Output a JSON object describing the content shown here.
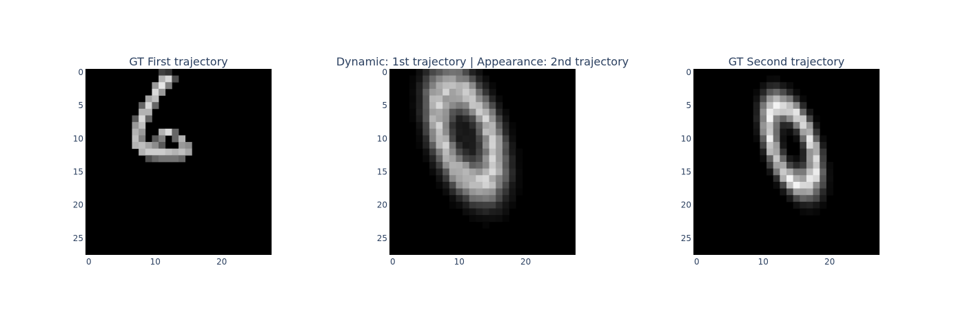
{
  "chart_data": [
    {
      "type": "heatmap",
      "title": "GT First trajectory",
      "colormap": "grayscale",
      "x_range": [
        -0.5,
        27.5
      ],
      "y_range": [
        27.5,
        -0.5
      ],
      "x_ticks": [
        "0",
        "10",
        "20"
      ],
      "y_ticks": [
        "0",
        "5",
        "10",
        "15",
        "20",
        "25"
      ],
      "pixels": [
        {
          "x": 11,
          "y": 0,
          "v": 0.25
        },
        {
          "x": 12,
          "y": 0,
          "v": 0.2
        },
        {
          "x": 11,
          "y": 1,
          "v": 0.7
        },
        {
          "x": 12,
          "y": 1,
          "v": 0.85
        },
        {
          "x": 13,
          "y": 1,
          "v": 0.3
        },
        {
          "x": 10,
          "y": 2,
          "v": 0.6
        },
        {
          "x": 11,
          "y": 2,
          "v": 0.9
        },
        {
          "x": 12,
          "y": 2,
          "v": 0.5
        },
        {
          "x": 10,
          "y": 3,
          "v": 0.85
        },
        {
          "x": 11,
          "y": 3,
          "v": 0.6
        },
        {
          "x": 9,
          "y": 4,
          "v": 0.65
        },
        {
          "x": 10,
          "y": 4,
          "v": 0.75
        },
        {
          "x": 8,
          "y": 5,
          "v": 0.4
        },
        {
          "x": 9,
          "y": 5,
          "v": 0.85
        },
        {
          "x": 10,
          "y": 5,
          "v": 0.4
        },
        {
          "x": 8,
          "y": 6,
          "v": 0.7
        },
        {
          "x": 9,
          "y": 6,
          "v": 0.7
        },
        {
          "x": 7,
          "y": 7,
          "v": 0.35
        },
        {
          "x": 8,
          "y": 7,
          "v": 0.85
        },
        {
          "x": 9,
          "y": 7,
          "v": 0.4
        },
        {
          "x": 7,
          "y": 8,
          "v": 0.6
        },
        {
          "x": 8,
          "y": 8,
          "v": 0.75
        },
        {
          "x": 7,
          "y": 9,
          "v": 0.7
        },
        {
          "x": 8,
          "y": 9,
          "v": 0.6
        },
        {
          "x": 11,
          "y": 9,
          "v": 0.7
        },
        {
          "x": 12,
          "y": 9,
          "v": 0.85
        },
        {
          "x": 13,
          "y": 9,
          "v": 0.4
        },
        {
          "x": 7,
          "y": 10,
          "v": 0.75
        },
        {
          "x": 8,
          "y": 10,
          "v": 0.5
        },
        {
          "x": 10,
          "y": 10,
          "v": 0.35
        },
        {
          "x": 11,
          "y": 10,
          "v": 0.5
        },
        {
          "x": 13,
          "y": 10,
          "v": 0.4
        },
        {
          "x": 14,
          "y": 10,
          "v": 0.7
        },
        {
          "x": 7,
          "y": 11,
          "v": 0.7
        },
        {
          "x": 8,
          "y": 11,
          "v": 0.75
        },
        {
          "x": 9,
          "y": 11,
          "v": 0.65
        },
        {
          "x": 10,
          "y": 11,
          "v": 0.55
        },
        {
          "x": 11,
          "y": 11,
          "v": 0.35
        },
        {
          "x": 14,
          "y": 11,
          "v": 0.6
        },
        {
          "x": 15,
          "y": 11,
          "v": 0.55
        },
        {
          "x": 8,
          "y": 12,
          "v": 0.7
        },
        {
          "x": 9,
          "y": 12,
          "v": 0.8
        },
        {
          "x": 10,
          "y": 12,
          "v": 0.8
        },
        {
          "x": 11,
          "y": 12,
          "v": 0.8
        },
        {
          "x": 12,
          "y": 12,
          "v": 0.75
        },
        {
          "x": 13,
          "y": 12,
          "v": 0.7
        },
        {
          "x": 14,
          "y": 12,
          "v": 0.75
        },
        {
          "x": 15,
          "y": 12,
          "v": 0.65
        },
        {
          "x": 9,
          "y": 13,
          "v": 0.3
        },
        {
          "x": 10,
          "y": 13,
          "v": 0.4
        },
        {
          "x": 11,
          "y": 13,
          "v": 0.45
        },
        {
          "x": 12,
          "y": 13,
          "v": 0.45
        },
        {
          "x": 13,
          "y": 13,
          "v": 0.45
        },
        {
          "x": 14,
          "y": 13,
          "v": 0.4
        }
      ]
    },
    {
      "type": "heatmap",
      "title": "Dynamic: 1st trajectory | Appearance: 2nd trajectory",
      "colormap": "grayscale",
      "x_range": [
        -0.5,
        27.5
      ],
      "y_range": [
        27.5,
        -0.5
      ],
      "x_ticks": [
        "0",
        "10",
        "20"
      ],
      "y_ticks": [
        "0",
        "5",
        "10",
        "15",
        "20",
        "25"
      ],
      "ellipse": {
        "cx": 11.0,
        "cy": 9.5,
        "rx": 3.7,
        "ry": 7.4,
        "angle_deg": 20,
        "thickness": 1.8,
        "peak": 0.75,
        "inner": 0.1
      }
    },
    {
      "type": "heatmap",
      "title": "GT Second trajectory",
      "colormap": "grayscale",
      "x_range": [
        -0.5,
        27.5
      ],
      "y_range": [
        27.5,
        -0.5
      ],
      "x_ticks": [
        "0",
        "10",
        "20"
      ],
      "y_ticks": [
        "0",
        "5",
        "10",
        "15",
        "20",
        "25"
      ],
      "ellipse": {
        "cx": 14.3,
        "cy": 11.0,
        "rx": 2.9,
        "ry": 6.3,
        "angle_deg": 20,
        "thickness": 1.1,
        "peak": 0.85,
        "inner": 0.0
      }
    }
  ]
}
